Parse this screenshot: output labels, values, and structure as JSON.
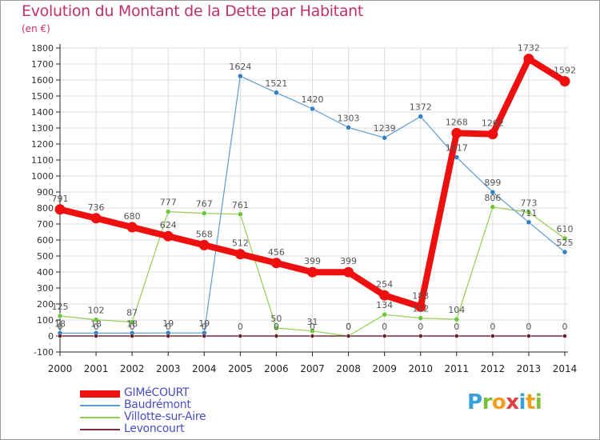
{
  "title": "Evolution du Montant de la Dette par Habitant",
  "subtitle": "(en €)",
  "logo_text": "Proxiti",
  "colors": {
    "title": "#c0306a",
    "grid": "#dcdcdc",
    "axis": "#222222",
    "legend_text": "#4a4cc7",
    "logo_letters": [
      "#3aa0d8",
      "#7cbf3a",
      "#f0a020",
      "#e04040",
      "#3aa0d8",
      "#f0a020",
      "#7cbf3a"
    ]
  },
  "chart_data": {
    "type": "line",
    "x": [
      "2000",
      "2001",
      "2002",
      "2003",
      "2004",
      "2005",
      "2006",
      "2007",
      "2008",
      "2009",
      "2010",
      "2011",
      "2012",
      "2013",
      "2014"
    ],
    "ylim": [
      -100,
      1800
    ],
    "yticks": [
      -100,
      0,
      100,
      200,
      300,
      400,
      500,
      600,
      700,
      800,
      900,
      1000,
      1100,
      1200,
      1300,
      1400,
      1500,
      1600,
      1700,
      1800
    ],
    "grid": true,
    "legend_position": "bottom-left",
    "series": [
      {
        "name": "Villotte-sur-Aire",
        "color": "#8fd14f",
        "marker_color": "#6cc63a",
        "values": [
          125,
          102,
          87,
          777,
          767,
          761,
          50,
          31,
          0,
          134,
          112,
          104,
          806,
          773,
          610
        ],
        "labels": [
          "125",
          "102",
          "87",
          "777",
          "767",
          "761",
          "50",
          "31",
          "0",
          "134",
          "112",
          "104",
          "806",
          "773",
          "610"
        ]
      },
      {
        "name": "Baudrémont",
        "color": "#5b9bd5",
        "marker_color": "#2f7fc4",
        "values": [
          18,
          18,
          18,
          19,
          19,
          1624,
          1521,
          1420,
          1303,
          1239,
          1372,
          1117,
          899,
          711,
          525
        ],
        "labels": [
          "18",
          "18",
          "18",
          "19",
          "19",
          "1624",
          "1521",
          "1420",
          "1303",
          "1239",
          "1372",
          "1117",
          "899",
          "711",
          "525"
        ]
      },
      {
        "name": "Levoncourt",
        "color": "#7a2a3a",
        "marker_color": "#6a1f2e",
        "values": [
          0,
          0,
          0,
          0,
          0,
          0,
          0,
          0,
          0,
          0,
          0,
          0,
          0,
          0,
          0
        ],
        "labels": [
          "0",
          "0",
          "0",
          "0",
          "0",
          "0",
          "0",
          "0",
          "0",
          "0",
          "0",
          "0",
          "0",
          "0",
          "0"
        ]
      },
      {
        "name": "GIMéCOURT",
        "color": "#ee0f0f",
        "marker_color": "#ee0f0f",
        "values": [
          791,
          736,
          680,
          624,
          568,
          512,
          456,
          399,
          399,
          254,
          183,
          1268,
          1262,
          1732,
          1592
        ],
        "labels": [
          "791",
          "736",
          "680",
          "624",
          "568",
          "512",
          "456",
          "399",
          "399",
          "254",
          "183",
          "1268",
          "1262",
          "1732",
          "1592"
        ]
      }
    ],
    "legend": [
      "GIMéCOURT",
      "Baudrémont",
      "Villotte-sur-Aire",
      "Levoncourt"
    ]
  }
}
